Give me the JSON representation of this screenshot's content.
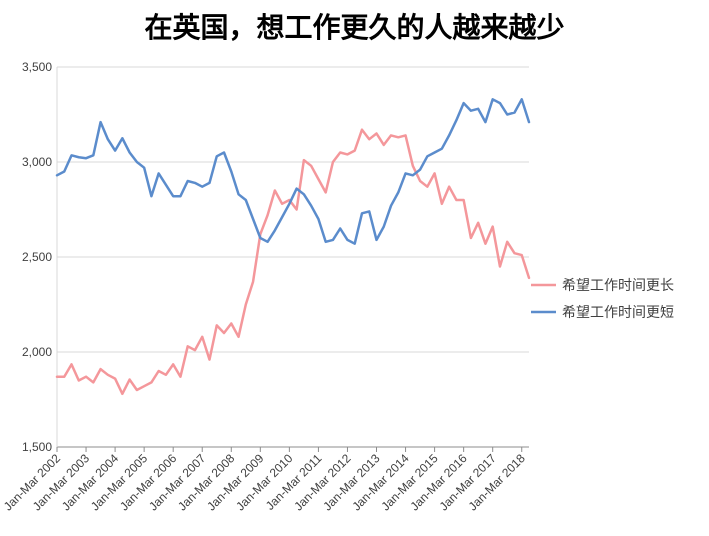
{
  "chart_data": {
    "type": "line",
    "title": "在英国，想工作更久的人越来越少",
    "xlabel": "",
    "ylabel": "",
    "ylim": [
      1500,
      3500
    ],
    "yticks": [
      1500,
      2000,
      2500,
      3000,
      3500
    ],
    "ytick_labels": [
      "1,500",
      "2,000",
      "2,500",
      "3,000",
      "3,500"
    ],
    "xtick_labels": [
      "Jan-Mar 2002",
      "Jan-Mar 2003",
      "Jan-Mar 2004",
      "Jan-Mar 2005",
      "Jan-Mar 2006",
      "Jan-Mar 2007",
      "Jan-Mar 2008",
      "Jan-Mar 2009",
      "Jan-Mar 2010",
      "Jan-Mar 2011",
      "Jan-Mar 2012",
      "Jan-Mar 2013",
      "Jan-Mar 2014",
      "Jan-Mar 2015",
      "Jan-Mar 2016",
      "Jan-Mar 2017",
      "Jan-Mar 2018"
    ],
    "grid": "horizontal",
    "legend": "right",
    "series": [
      {
        "name": "希望工作时间更长",
        "color": "#f4979b",
        "values": [
          1870,
          1870,
          1935,
          1850,
          1870,
          1840,
          1910,
          1880,
          1860,
          1780,
          1855,
          1800,
          1820,
          1840,
          1900,
          1880,
          1935,
          1870,
          2030,
          2010,
          2080,
          1960,
          2140,
          2100,
          2150,
          2080,
          2250,
          2370,
          2620,
          2720,
          2850,
          2780,
          2800,
          2750,
          3010,
          2980,
          2910,
          2840,
          3000,
          3050,
          3040,
          3060,
          3170,
          3120,
          3150,
          3090,
          3140,
          3130,
          3140,
          2980,
          2900,
          2870,
          2940,
          2780,
          2870,
          2800,
          2800,
          2600,
          2680,
          2570,
          2660,
          2450,
          2580,
          2520,
          2510,
          2390
        ]
      },
      {
        "name": "希望工作时间更短",
        "color": "#5b8ccc",
        "values": [
          2930,
          2950,
          3035,
          3025,
          3020,
          3035,
          3210,
          3120,
          3060,
          3125,
          3050,
          3000,
          2970,
          2820,
          2940,
          2880,
          2820,
          2820,
          2900,
          2890,
          2870,
          2890,
          3030,
          3050,
          2950,
          2830,
          2800,
          2700,
          2600,
          2580,
          2640,
          2710,
          2780,
          2860,
          2830,
          2770,
          2700,
          2580,
          2590,
          2650,
          2590,
          2570,
          2730,
          2740,
          2590,
          2660,
          2770,
          2840,
          2940,
          2930,
          2960,
          3030,
          3050,
          3070,
          3140,
          3220,
          3310,
          3270,
          3280,
          3210,
          3330,
          3310,
          3250,
          3260,
          3330,
          3210
        ]
      }
    ]
  }
}
